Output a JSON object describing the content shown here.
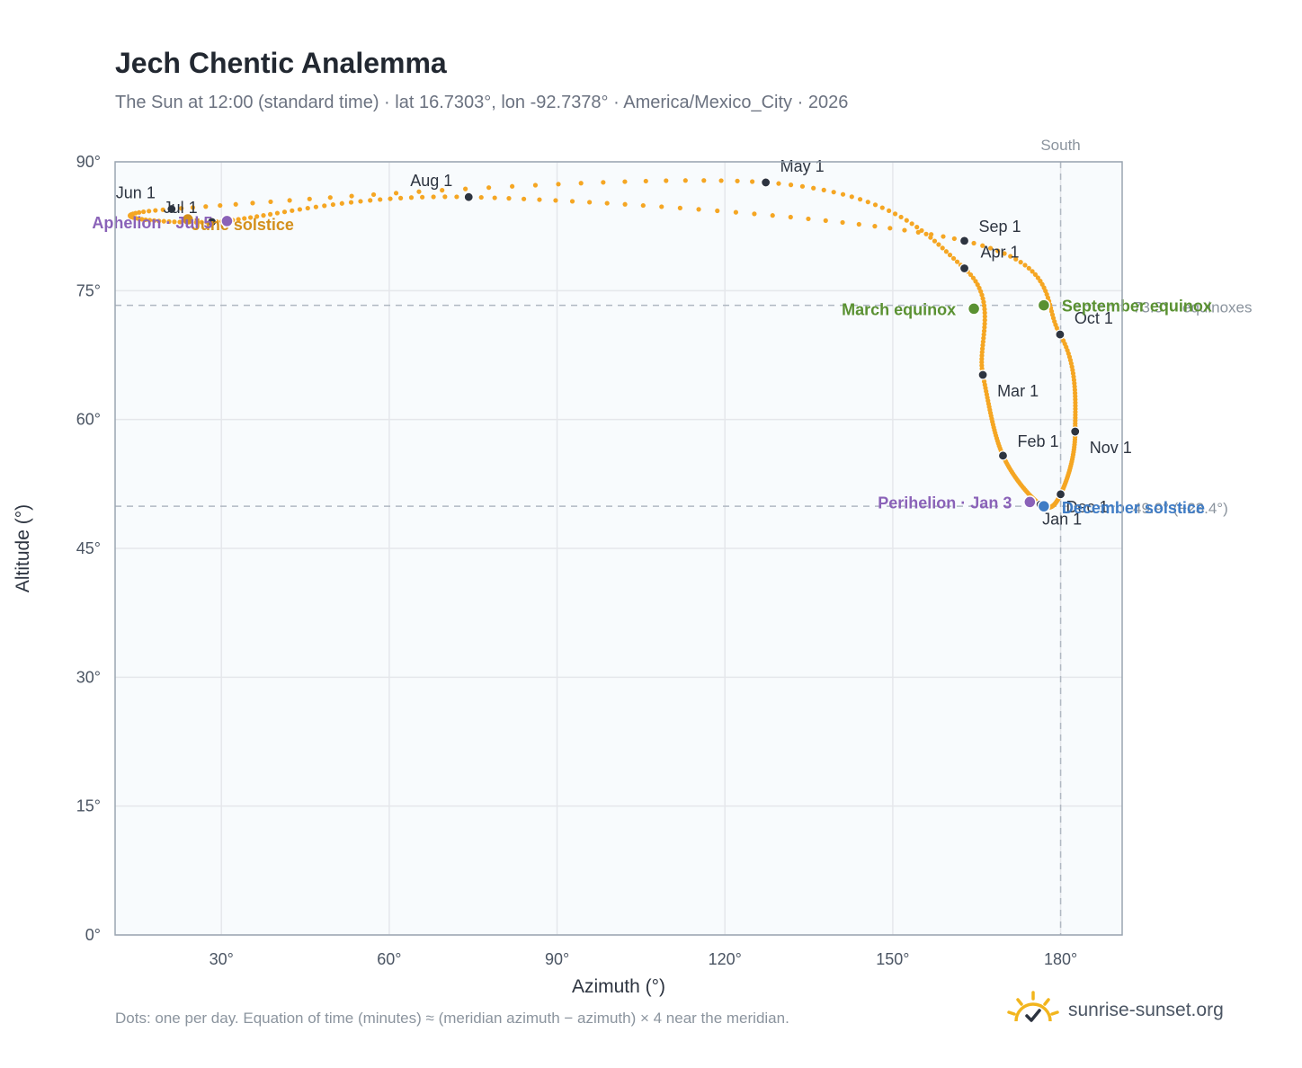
{
  "title": "Jech Chentic Analemma",
  "subtitle": "The Sun at 12:00 (standard time) · lat 16.7303°, lon -92.7378° · America/Mexico_City · 2026",
  "footnote": "Dots: one per day. Equation of time (minutes) ≈ (meridian azimuth − azimuth) × 4 near the meridian.",
  "brand": {
    "name": "sunrise-sunset.org",
    "icon": "sun-check-logo-icon"
  },
  "colors": {
    "path": "#f5a623",
    "month_dot": "#2d3440",
    "march_equinox": "#5a9132",
    "september_equinox": "#5a9132",
    "june_solstice": "#d4901c",
    "december_solstice": "#3f7cc5",
    "perihelion": "#8a62b8",
    "aphelion": "#8a62b8",
    "grid": "#e5e7eb",
    "plot_bg": "#f8fbfd"
  },
  "chart_data": {
    "type": "scatter",
    "title": "Jech Chentic Analemma",
    "xlabel": "Azimuth (°)",
    "ylabel": "Altitude (°)",
    "xlim": [
      11,
      191
    ],
    "ylim": [
      0,
      90
    ],
    "x_ticks": [
      30,
      60,
      90,
      120,
      150,
      180
    ],
    "x_tick_labels": [
      "30°",
      "60°",
      "90°",
      "120°",
      "150°",
      "180°"
    ],
    "y_ticks": [
      0,
      15,
      30,
      45,
      60,
      75,
      90
    ],
    "y_tick_labels": [
      "0°",
      "15°",
      "30°",
      "45°",
      "60°",
      "75°",
      "90°"
    ],
    "grid": true,
    "meridian": {
      "azimuth": 180,
      "label": "South"
    },
    "reference_lines": [
      {
        "altitude": 73.3,
        "label": "73.3° · equinoxes"
      },
      {
        "altitude": 49.9,
        "label": "49.9° (−23.4°)"
      }
    ],
    "month_points": [
      {
        "label": "Jan 1",
        "azimuth": 176.4,
        "altitude": 50.1
      },
      {
        "label": "Feb 1",
        "azimuth": 169.7,
        "altitude": 55.8
      },
      {
        "label": "Mar 1",
        "azimuth": 166.1,
        "altitude": 65.2
      },
      {
        "label": "Apr 1",
        "azimuth": 162.8,
        "altitude": 77.6
      },
      {
        "label": "May 1",
        "azimuth": 127.3,
        "altitude": 87.6
      },
      {
        "label": "Jun 1",
        "azimuth": 21.1,
        "altitude": 84.5
      },
      {
        "label": "Jul 1",
        "azimuth": 28.3,
        "altitude": 83.0
      },
      {
        "label": "Aug 1",
        "azimuth": 74.2,
        "altitude": 85.9
      },
      {
        "label": "Sep 1",
        "azimuth": 162.8,
        "altitude": 80.8
      },
      {
        "label": "Oct 1",
        "azimuth": 179.9,
        "altitude": 69.9
      },
      {
        "label": "Nov 1",
        "azimuth": 182.6,
        "altitude": 58.6
      },
      {
        "label": "Dec 1",
        "azimuth": 180.0,
        "altitude": 51.3
      }
    ],
    "events": [
      {
        "label": "March equinox",
        "azimuth": 164.5,
        "altitude": 72.9
      },
      {
        "label": "June solstice",
        "azimuth": 24.0,
        "altitude": 83.3
      },
      {
        "label": "September equinox",
        "azimuth": 177.0,
        "altitude": 73.3
      },
      {
        "label": "December solstice",
        "azimuth": 177.0,
        "altitude": 49.9
      },
      {
        "label": "Perihelion · Jan 3",
        "azimuth": 174.5,
        "altitude": 50.4
      },
      {
        "label": "Aphelion · Jul 5",
        "azimuth": 31.0,
        "altitude": 83.1
      }
    ]
  }
}
